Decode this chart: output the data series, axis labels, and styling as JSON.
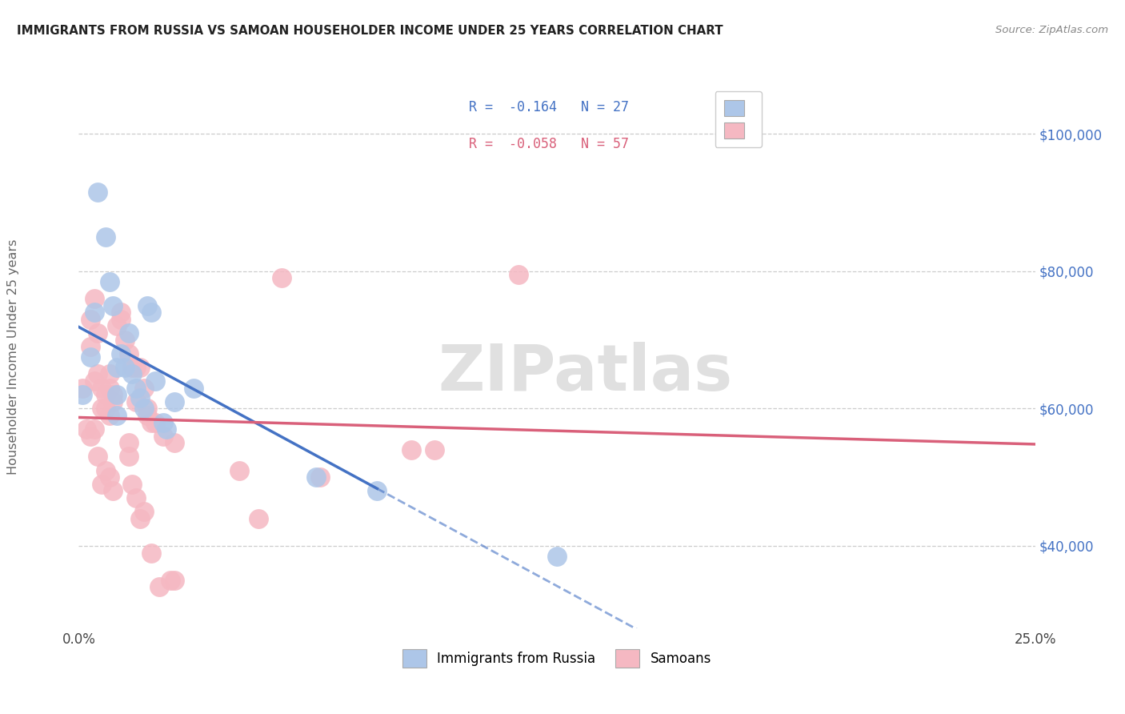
{
  "title": "IMMIGRANTS FROM RUSSIA VS SAMOAN HOUSEHOLDER INCOME UNDER 25 YEARS CORRELATION CHART",
  "source": "Source: ZipAtlas.com",
  "ylabel": "Householder Income Under 25 years",
  "y_ticks": [
    40000,
    60000,
    80000,
    100000
  ],
  "y_tick_labels": [
    "$40,000",
    "$60,000",
    "$80,000",
    "$100,000"
  ],
  "xlim": [
    0.0,
    0.25
  ],
  "ylim": [
    28000,
    107000
  ],
  "legend_blue_r": "R =  -0.164",
  "legend_blue_n": "N = 27",
  "legend_pink_r": "R =  -0.058",
  "legend_pink_n": "N = 57",
  "blue_fill": "#adc6e8",
  "pink_fill": "#f5b8c2",
  "blue_line": "#4472c4",
  "pink_line": "#d9607a",
  "blue_scatter": [
    [
      0.001,
      62000
    ],
    [
      0.003,
      67500
    ],
    [
      0.004,
      74000
    ],
    [
      0.005,
      91500
    ],
    [
      0.007,
      85000
    ],
    [
      0.008,
      78500
    ],
    [
      0.009,
      75000
    ],
    [
      0.01,
      66000
    ],
    [
      0.01,
      62000
    ],
    [
      0.01,
      59000
    ],
    [
      0.011,
      68000
    ],
    [
      0.012,
      66000
    ],
    [
      0.013,
      71000
    ],
    [
      0.014,
      65000
    ],
    [
      0.015,
      63000
    ],
    [
      0.016,
      61500
    ],
    [
      0.017,
      60000
    ],
    [
      0.018,
      75000
    ],
    [
      0.019,
      74000
    ],
    [
      0.02,
      64000
    ],
    [
      0.022,
      58000
    ],
    [
      0.023,
      57000
    ],
    [
      0.025,
      61000
    ],
    [
      0.03,
      63000
    ],
    [
      0.062,
      50000
    ],
    [
      0.078,
      48000
    ],
    [
      0.125,
      38500
    ]
  ],
  "pink_scatter": [
    [
      0.001,
      63000
    ],
    [
      0.002,
      57000
    ],
    [
      0.003,
      73000
    ],
    [
      0.003,
      69000
    ],
    [
      0.004,
      76000
    ],
    [
      0.004,
      64000
    ],
    [
      0.005,
      65000
    ],
    [
      0.005,
      71000
    ],
    [
      0.006,
      60000
    ],
    [
      0.006,
      63000
    ],
    [
      0.007,
      62000
    ],
    [
      0.007,
      60000
    ],
    [
      0.008,
      63000
    ],
    [
      0.008,
      65000
    ],
    [
      0.008,
      59000
    ],
    [
      0.009,
      62000
    ],
    [
      0.009,
      61000
    ],
    [
      0.01,
      72000
    ],
    [
      0.011,
      73000
    ],
    [
      0.011,
      74000
    ],
    [
      0.012,
      70000
    ],
    [
      0.013,
      68000
    ],
    [
      0.014,
      66000
    ],
    [
      0.015,
      66000
    ],
    [
      0.015,
      61000
    ],
    [
      0.016,
      66000
    ],
    [
      0.017,
      63000
    ],
    [
      0.018,
      60000
    ],
    [
      0.018,
      59000
    ],
    [
      0.019,
      58000
    ],
    [
      0.02,
      58000
    ],
    [
      0.022,
      56000
    ],
    [
      0.025,
      55000
    ],
    [
      0.003,
      56000
    ],
    [
      0.004,
      57000
    ],
    [
      0.005,
      53000
    ],
    [
      0.006,
      49000
    ],
    [
      0.007,
      51000
    ],
    [
      0.008,
      50000
    ],
    [
      0.009,
      48000
    ],
    [
      0.013,
      55000
    ],
    [
      0.013,
      53000
    ],
    [
      0.014,
      49000
    ],
    [
      0.015,
      47000
    ],
    [
      0.016,
      44000
    ],
    [
      0.017,
      45000
    ],
    [
      0.019,
      39000
    ],
    [
      0.021,
      34000
    ],
    [
      0.024,
      35000
    ],
    [
      0.025,
      35000
    ],
    [
      0.042,
      51000
    ],
    [
      0.047,
      44000
    ],
    [
      0.053,
      79000
    ],
    [
      0.063,
      50000
    ],
    [
      0.087,
      54000
    ],
    [
      0.093,
      54000
    ],
    [
      0.115,
      79500
    ]
  ],
  "watermark": "ZIPatlas",
  "bg_color": "#ffffff",
  "grid_color": "#cccccc"
}
